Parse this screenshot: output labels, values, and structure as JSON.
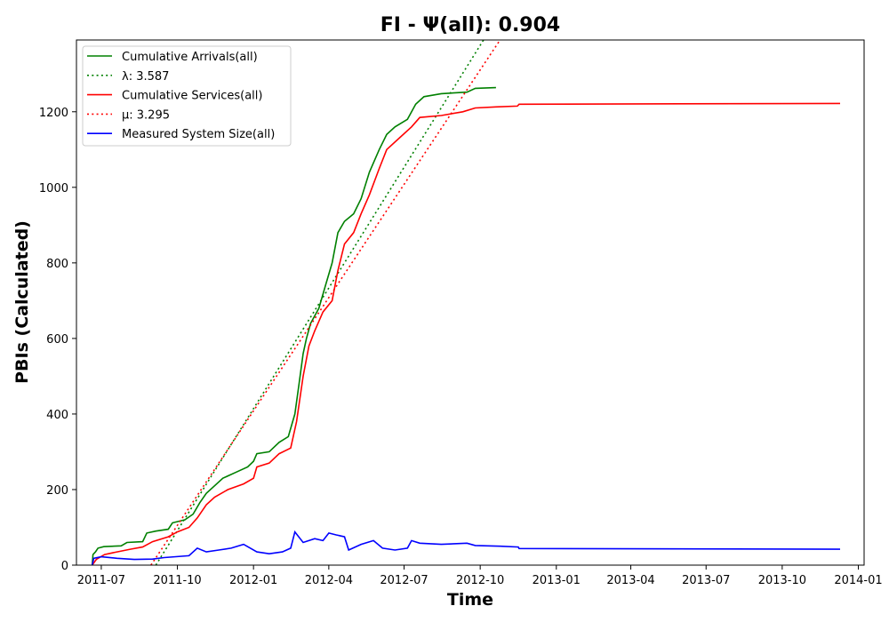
{
  "chart_data": {
    "type": "line",
    "title": "FI -  Ψ(all): 0.904",
    "xlabel": "Time",
    "ylabel": "PBIs (Calculated)",
    "xlim": [
      "2011-06-01",
      "2014-01-08"
    ],
    "ylim": [
      0,
      1390
    ],
    "x_ticks": [
      "2011-07",
      "2011-10",
      "2012-01",
      "2012-04",
      "2012-07",
      "2012-10",
      "2013-01",
      "2013-04",
      "2013-07",
      "2013-10",
      "2014-01"
    ],
    "y_ticks": [
      0,
      200,
      400,
      600,
      800,
      1000,
      1200
    ],
    "grid": false,
    "legend_position": "top-left",
    "series": [
      {
        "name": "Cumulative Arrivals(all)",
        "color": "#008000",
        "style": "solid",
        "points": [
          [
            "2011-06-20",
            0
          ],
          [
            "2011-06-21",
            28
          ],
          [
            "2011-06-24",
            35
          ],
          [
            "2011-06-27",
            45
          ],
          [
            "2011-07-04",
            49
          ],
          [
            "2011-07-25",
            51
          ],
          [
            "2011-08-01",
            60
          ],
          [
            "2011-08-20",
            62
          ],
          [
            "2011-08-25",
            85
          ],
          [
            "2011-09-05",
            90
          ],
          [
            "2011-09-20",
            95
          ],
          [
            "2011-09-25",
            112
          ],
          [
            "2011-10-10",
            120
          ],
          [
            "2011-10-20",
            135
          ],
          [
            "2011-10-28",
            165
          ],
          [
            "2011-11-05",
            190
          ],
          [
            "2011-11-15",
            210
          ],
          [
            "2011-11-25",
            230
          ],
          [
            "2011-12-10",
            245
          ],
          [
            "2011-12-25",
            260
          ],
          [
            "2012-01-01",
            275
          ],
          [
            "2012-01-05",
            295
          ],
          [
            "2012-01-20",
            300
          ],
          [
            "2012-02-01",
            325
          ],
          [
            "2012-02-12",
            340
          ],
          [
            "2012-02-20",
            400
          ],
          [
            "2012-02-25",
            480
          ],
          [
            "2012-03-01",
            560
          ],
          [
            "2012-03-05",
            600
          ],
          [
            "2012-03-10",
            640
          ],
          [
            "2012-03-20",
            680
          ],
          [
            "2012-03-28",
            740
          ],
          [
            "2012-04-05",
            800
          ],
          [
            "2012-04-12",
            880
          ],
          [
            "2012-04-20",
            910
          ],
          [
            "2012-05-01",
            930
          ],
          [
            "2012-05-10",
            970
          ],
          [
            "2012-05-20",
            1040
          ],
          [
            "2012-06-01",
            1100
          ],
          [
            "2012-06-10",
            1140
          ],
          [
            "2012-06-20",
            1160
          ],
          [
            "2012-07-05",
            1180
          ],
          [
            "2012-07-15",
            1220
          ],
          [
            "2012-07-25",
            1240
          ],
          [
            "2012-08-15",
            1248
          ],
          [
            "2012-09-15",
            1252
          ],
          [
            "2012-09-25",
            1262
          ],
          [
            "2012-10-20",
            1264
          ]
        ]
      },
      {
        "name": "λ: 3.587",
        "color": "#008000",
        "style": "dotted",
        "points": [
          [
            "2011-09-05",
            0
          ],
          [
            "2012-10-05",
            1390
          ]
        ]
      },
      {
        "name": "Cumulative Services(all)",
        "color": "#ff0000",
        "style": "solid",
        "points": [
          [
            "2011-06-20",
            0
          ],
          [
            "2011-06-25",
            15
          ],
          [
            "2011-07-05",
            28
          ],
          [
            "2011-07-20",
            35
          ],
          [
            "2011-08-05",
            42
          ],
          [
            "2011-08-20",
            48
          ],
          [
            "2011-09-01",
            62
          ],
          [
            "2011-09-20",
            75
          ],
          [
            "2011-10-01",
            88
          ],
          [
            "2011-10-15",
            100
          ],
          [
            "2011-10-25",
            125
          ],
          [
            "2011-11-05",
            160
          ],
          [
            "2011-11-15",
            180
          ],
          [
            "2011-12-01",
            200
          ],
          [
            "2011-12-20",
            215
          ],
          [
            "2012-01-01",
            230
          ],
          [
            "2012-01-05",
            260
          ],
          [
            "2012-01-20",
            270
          ],
          [
            "2012-02-01",
            295
          ],
          [
            "2012-02-15",
            310
          ],
          [
            "2012-02-22",
            380
          ],
          [
            "2012-03-01",
            500
          ],
          [
            "2012-03-08",
            580
          ],
          [
            "2012-03-15",
            620
          ],
          [
            "2012-03-25",
            670
          ],
          [
            "2012-04-05",
            700
          ],
          [
            "2012-04-12",
            780
          ],
          [
            "2012-04-20",
            850
          ],
          [
            "2012-05-01",
            880
          ],
          [
            "2012-05-10",
            930
          ],
          [
            "2012-05-20",
            980
          ],
          [
            "2012-06-01",
            1050
          ],
          [
            "2012-06-10",
            1100
          ],
          [
            "2012-06-25",
            1130
          ],
          [
            "2012-07-10",
            1160
          ],
          [
            "2012-07-20",
            1185
          ],
          [
            "2012-08-15",
            1190
          ],
          [
            "2012-09-10",
            1200
          ],
          [
            "2012-09-25",
            1210
          ],
          [
            "2012-10-20",
            1213
          ],
          [
            "2012-11-15",
            1215
          ],
          [
            "2012-11-17",
            1220
          ],
          [
            "2013-12-10",
            1222
          ]
        ]
      },
      {
        "name": "μ: 3.295",
        "color": "#ff0000",
        "style": "dotted",
        "points": [
          [
            "2011-08-30",
            0
          ],
          [
            "2012-10-25",
            1390
          ]
        ]
      },
      {
        "name": "Measured System Size(all)",
        "color": "#0000ff",
        "style": "solid",
        "points": [
          [
            "2011-06-20",
            0
          ],
          [
            "2011-06-22",
            18
          ],
          [
            "2011-07-01",
            22
          ],
          [
            "2011-07-20",
            18
          ],
          [
            "2011-08-10",
            15
          ],
          [
            "2011-09-01",
            16
          ],
          [
            "2011-09-15",
            20
          ],
          [
            "2011-10-15",
            25
          ],
          [
            "2011-10-25",
            45
          ],
          [
            "2011-11-05",
            35
          ],
          [
            "2011-11-20",
            40
          ],
          [
            "2011-12-05",
            45
          ],
          [
            "2011-12-20",
            55
          ],
          [
            "2012-01-05",
            35
          ],
          [
            "2012-01-20",
            30
          ],
          [
            "2012-02-05",
            35
          ],
          [
            "2012-02-15",
            45
          ],
          [
            "2012-02-20",
            88
          ],
          [
            "2012-03-01",
            60
          ],
          [
            "2012-03-15",
            70
          ],
          [
            "2012-03-25",
            65
          ],
          [
            "2012-04-01",
            85
          ],
          [
            "2012-04-10",
            80
          ],
          [
            "2012-04-20",
            75
          ],
          [
            "2012-04-25",
            40
          ],
          [
            "2012-05-10",
            55
          ],
          [
            "2012-05-25",
            65
          ],
          [
            "2012-06-05",
            45
          ],
          [
            "2012-06-20",
            40
          ],
          [
            "2012-07-05",
            45
          ],
          [
            "2012-07-10",
            65
          ],
          [
            "2012-07-20",
            58
          ],
          [
            "2012-08-15",
            55
          ],
          [
            "2012-09-15",
            58
          ],
          [
            "2012-09-25",
            52
          ],
          [
            "2012-10-25",
            50
          ],
          [
            "2012-11-16",
            48
          ],
          [
            "2012-11-17",
            44
          ],
          [
            "2013-12-10",
            42
          ]
        ]
      }
    ]
  }
}
